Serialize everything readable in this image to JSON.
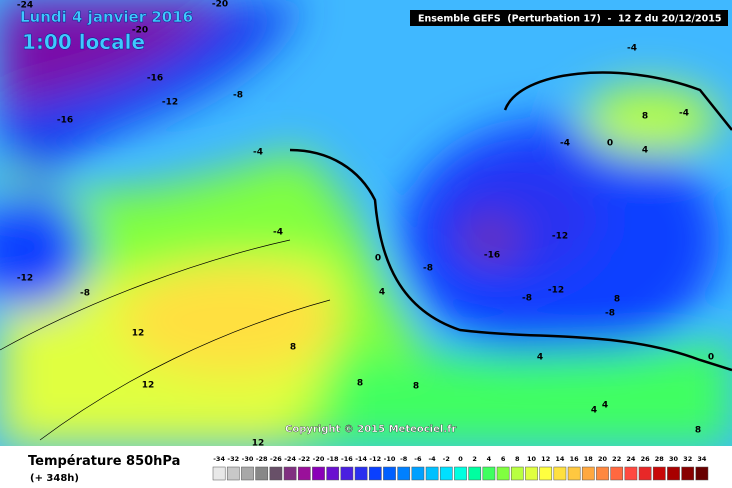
{
  "header": {
    "date": "Lundi 4 janvier 2016",
    "time": "1:00 locale",
    "run": "Ensemble GEFS  (Perturbation 17)  -  12 Z du 20/12/2015"
  },
  "copyright": "Copyright © 2015 Meteociel.fr",
  "map": {
    "labels": [
      "-24",
      "-20",
      "-20",
      "-16",
      "-12",
      "-8",
      "-16",
      "-4",
      "-4",
      "-4",
      "-12",
      "-8",
      "0",
      "-4",
      "-8",
      "-16",
      "-12",
      "-8",
      "-12",
      "-8",
      "12",
      "8",
      "4",
      "12",
      "8",
      "8",
      "4",
      "4",
      "8",
      "0",
      "4",
      "8",
      "12",
      "-4",
      "0",
      "4",
      "8"
    ]
  },
  "legend": {
    "title": "Température 850hPa",
    "subtitle": "(+ 348h)",
    "scale": [
      -34,
      -32,
      -30,
      -28,
      -26,
      -24,
      -22,
      -20,
      -18,
      -16,
      -14,
      -12,
      -10,
      -8,
      -6,
      -4,
      -2,
      0,
      2,
      4,
      6,
      8,
      10,
      12,
      14,
      16,
      18,
      20,
      22,
      24,
      26,
      28,
      30,
      32,
      34
    ],
    "colors": [
      "#e8e8e8",
      "#c8c8c8",
      "#a8a8a8",
      "#888888",
      "#685068",
      "#803080",
      "#9a109a",
      "#8a00b8",
      "#6a10d0",
      "#4a20e0",
      "#2a30f0",
      "#0a40ff",
      "#0060ff",
      "#0080ff",
      "#00a0ff",
      "#00c0ff",
      "#00e0ff",
      "#00ffe0",
      "#00ffa0",
      "#40ff60",
      "#80ff40",
      "#b8ff40",
      "#e0ff40",
      "#ffff40",
      "#ffe040",
      "#ffc840",
      "#ffa840",
      "#ff8840",
      "#ff6840",
      "#ff4840",
      "#e82828",
      "#c80808",
      "#a80000",
      "#880000",
      "#680000"
    ]
  }
}
